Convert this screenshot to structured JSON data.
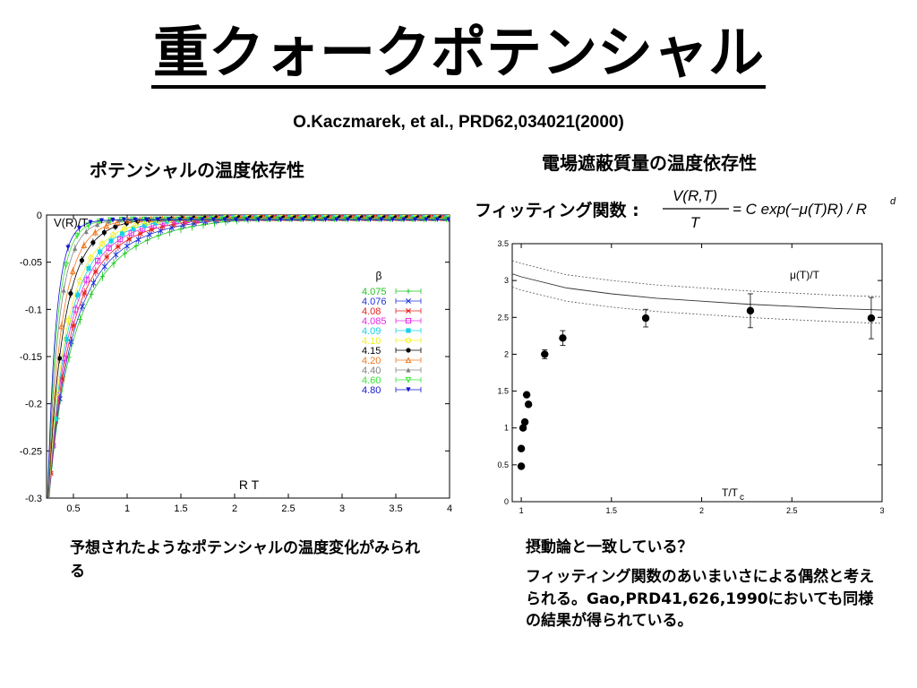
{
  "slide": {
    "title": "重クォークポテンシャル",
    "citation": "O.Kaczmarek, et al., PRD62,034021(2000)",
    "left_caption": "ポテンシャルの温度依存性",
    "right_caption": "電場遮蔽質量の温度依存性",
    "fit_label": "フィッティング関数 :",
    "formula": {
      "num": "V(R,T)",
      "den": "T",
      "rhs": "= C exp(−μ(T)R) / R",
      "sup": "d"
    },
    "left_note": "予想されたようなポテンシャルの温度変化がみられる",
    "right_note1": "摂動論と一致している？",
    "right_note2": "フィッティング関数のあいまいさによる偶然と考えられる。Gao,PRD41,626,1990においても同様の結果が得られている。"
  },
  "chart_data": [
    {
      "type": "scatter",
      "title": "",
      "xlabel": "R T",
      "ylabel": "V(R)/T",
      "xlim": [
        0.25,
        4.0
      ],
      "ylim": [
        -0.3,
        0.0
      ],
      "xticks": [
        "0.5",
        "1",
        "1.5",
        "2",
        "2.5",
        "3",
        "3.5",
        "4"
      ],
      "yticks": [
        "0",
        "-0.05",
        "-0.1",
        "-0.15",
        "-0.2",
        "-0.25",
        "-0.3"
      ],
      "legend_title": "β",
      "legend_position": "top-right",
      "grid": false,
      "series": [
        {
          "name": "4.075",
          "color": "#1ec81e",
          "marker": "plus",
          "mu": 1.2
        },
        {
          "name": "4.076",
          "color": "#1e32dc",
          "marker": "cross",
          "mu": 1.45
        },
        {
          "name": "4.08",
          "color": "#e61e1e",
          "marker": "star",
          "mu": 1.75
        },
        {
          "name": "4.085",
          "color": "#e628e6",
          "marker": "sqopen",
          "mu": 2.1
        },
        {
          "name": "4.09",
          "color": "#14d2e6",
          "marker": "sqfill",
          "mu": 2.45
        },
        {
          "name": "4.10",
          "color": "#f0f01e",
          "marker": "circopen",
          "mu": 2.85
        },
        {
          "name": "4.15",
          "color": "#000000",
          "marker": "circfill",
          "mu": 3.8
        },
        {
          "name": "4.20",
          "color": "#f0781e",
          "marker": "triopen",
          "mu": 4.8
        },
        {
          "name": "4.40",
          "color": "#828282",
          "marker": "trifill",
          "mu": 6.5
        },
        {
          "name": "4.60",
          "color": "#32e632",
          "marker": "tridown",
          "mu": 8.0
        },
        {
          "name": "4.80",
          "color": "#1414d2",
          "marker": "tridownfill",
          "mu": 9.5
        }
      ]
    },
    {
      "type": "scatter",
      "title": "",
      "xlabel": "T/T",
      "xlabel_sub": "c",
      "ylabel": "",
      "xlim": [
        0.95,
        3.0
      ],
      "ylim": [
        0,
        3.5
      ],
      "xticks": [
        "1",
        "1.5",
        "2",
        "2.5",
        "3"
      ],
      "yticks": [
        "0",
        "0.5",
        "1",
        "1.5",
        "2",
        "2.5",
        "3",
        "3.5"
      ],
      "curve_label": "μ(T)/T",
      "grid": false,
      "points": [
        {
          "x": 1.0,
          "y": 0.48
        },
        {
          "x": 1.0,
          "y": 0.72
        },
        {
          "x": 1.01,
          "y": 1.0
        },
        {
          "x": 1.02,
          "y": 1.08
        },
        {
          "x": 1.03,
          "y": 1.45
        },
        {
          "x": 1.04,
          "y": 1.32
        },
        {
          "x": 1.13,
          "y": 2.0,
          "err": 0.06
        },
        {
          "x": 1.23,
          "y": 2.22,
          "err": 0.1
        },
        {
          "x": 1.69,
          "y": 2.49,
          "err": 0.12
        },
        {
          "x": 2.27,
          "y": 2.59,
          "err": 0.23
        },
        {
          "x": 2.94,
          "y": 2.49,
          "err": 0.28
        }
      ],
      "curve": {
        "x": [
          0.95,
          1.0,
          1.25,
          1.5,
          1.75,
          2.0,
          2.25,
          2.5,
          2.75,
          3.0
        ],
        "y": [
          3.09,
          3.05,
          2.9,
          2.82,
          2.76,
          2.72,
          2.68,
          2.65,
          2.62,
          2.6
        ]
      },
      "curve_band": 0.18
    }
  ]
}
